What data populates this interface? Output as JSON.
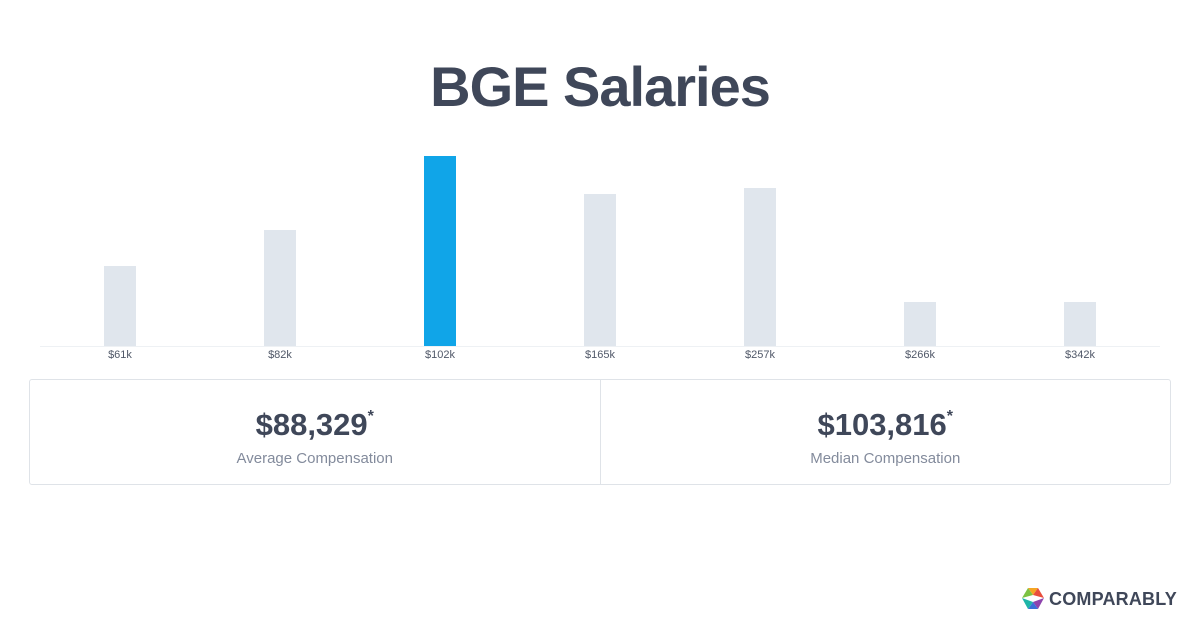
{
  "page": {
    "title": "BGE Salaries"
  },
  "chart_data": {
    "type": "bar",
    "categories": [
      "$61k",
      "$82k",
      "$102k",
      "$165k",
      "$257k",
      "$266k",
      "$342k"
    ],
    "values": [
      80,
      116,
      190,
      152,
      158,
      44,
      44
    ],
    "highlight_index": 2,
    "xlabel": "",
    "ylabel": "",
    "ylim": [
      0,
      190
    ],
    "grid": false,
    "colors": {
      "bar": "#e0e6ed",
      "highlight": "#10a5e8",
      "axis": "#eef1f4"
    }
  },
  "stats": [
    {
      "value": "$88,329",
      "asterisk": "*",
      "label": "Average Compensation"
    },
    {
      "value": "$103,816",
      "asterisk": "*",
      "label": "Median Compensation"
    }
  ],
  "brand": {
    "logo_text": "COMPARABLY",
    "icon": "comparably-logo-icon"
  }
}
